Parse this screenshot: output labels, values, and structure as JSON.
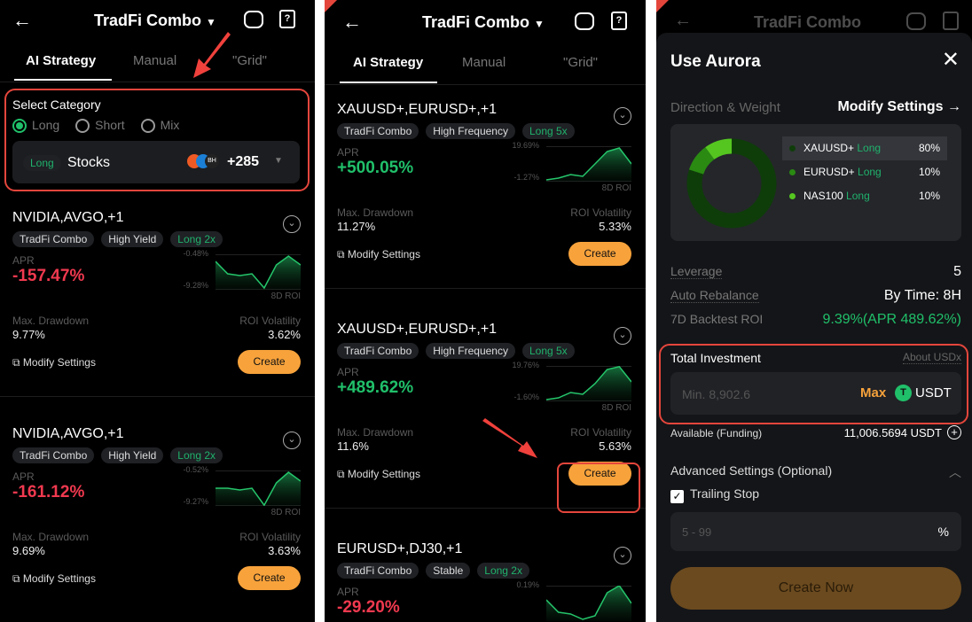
{
  "header": {
    "title": "TradFi Combo",
    "back_icon": "arrow-left",
    "robot_icon": "robot",
    "guide_icon": "book-question"
  },
  "tabs": [
    {
      "label": "AI Strategy",
      "active": true
    },
    {
      "label": "Manual"
    },
    {
      "label": "\"Grid\""
    }
  ],
  "category": {
    "title": "Select Category",
    "options": [
      "Long",
      "Short",
      "Mix"
    ],
    "selected": "Long",
    "select_tag": "Long",
    "select_value": "Stocks",
    "count": "+285"
  },
  "panel1_cards": [
    {
      "title": "NVIDIA,AVGO,+1",
      "tags": [
        "TradFi Combo",
        "High Yield",
        "Long 2x"
      ],
      "apr_label": "APR",
      "apr": "-157.47%",
      "apr_positive": false,
      "roi_high": "-0.48%",
      "roi_low": "-9.28%",
      "roi_label": "8D ROI",
      "dd_label": "Max. Drawdown",
      "dd": "9.77%",
      "vol_label": "ROI Volatility",
      "vol": "3.62%",
      "modify": "Modify Settings",
      "create": "Create"
    },
    {
      "title": "NVIDIA,AVGO,+1",
      "tags": [
        "TradFi Combo",
        "High Yield",
        "Long 2x"
      ],
      "apr_label": "APR",
      "apr": "-161.12%",
      "apr_positive": false,
      "roi_high": "-0.52%",
      "roi_low": "-9.27%",
      "roi_label": "8D ROI",
      "dd_label": "Max. Drawdown",
      "dd": "9.69%",
      "vol_label": "ROI Volatility",
      "vol": "3.63%",
      "modify": "Modify Settings",
      "create": "Create"
    }
  ],
  "panel2_cards": [
    {
      "title": "XAUUSD+,EURUSD+,+1",
      "tags": [
        "TradFi Combo",
        "High Frequency",
        "Long 5x"
      ],
      "apr_label": "APR",
      "apr": "+500.05%",
      "apr_positive": true,
      "roi_high": "19.69%",
      "roi_low": "-1.27%",
      "roi_label": "8D ROI",
      "dd_label": "Max. Drawdown",
      "dd": "11.27%",
      "vol_label": "ROI Volatility",
      "vol": "5.33%",
      "modify": "Modify Settings",
      "create": "Create"
    },
    {
      "title": "XAUUSD+,EURUSD+,+1",
      "tags": [
        "TradFi Combo",
        "High Frequency",
        "Long 5x"
      ],
      "apr_label": "APR",
      "apr": "+489.62%",
      "apr_positive": true,
      "roi_high": "19.76%",
      "roi_low": "-1.60%",
      "roi_label": "8D ROI",
      "dd_label": "Max. Drawdown",
      "dd": "11.6%",
      "vol_label": "ROI Volatility",
      "vol": "5.63%",
      "modify": "Modify Settings",
      "create": "Create"
    },
    {
      "title": "EURUSD+,DJ30,+1",
      "tags": [
        "TradFi Combo",
        "Stable",
        "Long 2x"
      ],
      "apr_label": "APR",
      "apr": "-29.20%",
      "apr_positive": false,
      "roi_high": "0.19%",
      "roi_low": "",
      "roi_label": "",
      "dd_label": "",
      "dd": "",
      "vol_label": "",
      "vol": "",
      "modify": "",
      "create": ""
    }
  ],
  "modal": {
    "title": "Use Aurora",
    "direction_label": "Direction & Weight",
    "modify_settings": "Modify Settings →",
    "allocation": [
      {
        "asset": "XAUUSD+",
        "side": "Long",
        "weight": "80%",
        "pct": 80,
        "color": "#0f3d0a"
      },
      {
        "asset": "EURUSD+",
        "side": "Long",
        "weight": "10%",
        "pct": 10,
        "color": "#2a8a12"
      },
      {
        "asset": "NAS100",
        "side": "Long",
        "weight": "10%",
        "pct": 10,
        "color": "#55c620"
      }
    ],
    "leverage_label": "Leverage",
    "leverage": "5",
    "rebalance_label": "Auto Rebalance",
    "rebalance": "By Time: 8H",
    "backtest_label": "7D Backtest ROI",
    "backtest": "9.39%(APR 489.62%)",
    "investment_label": "Total Investment",
    "about_usdx": "About USDx",
    "investment_placeholder": "Min. 8,902.6",
    "max": "Max",
    "currency": "USDT",
    "available_label": "Available (Funding)",
    "available": "11,006.5694 USDT",
    "advanced_label": "Advanced Settings (Optional)",
    "trailing_label": "Trailing Stop",
    "trailing_checked": true,
    "trailing_placeholder": "5 - 99",
    "trailing_unit": "%",
    "create_now": "Create Now"
  }
}
